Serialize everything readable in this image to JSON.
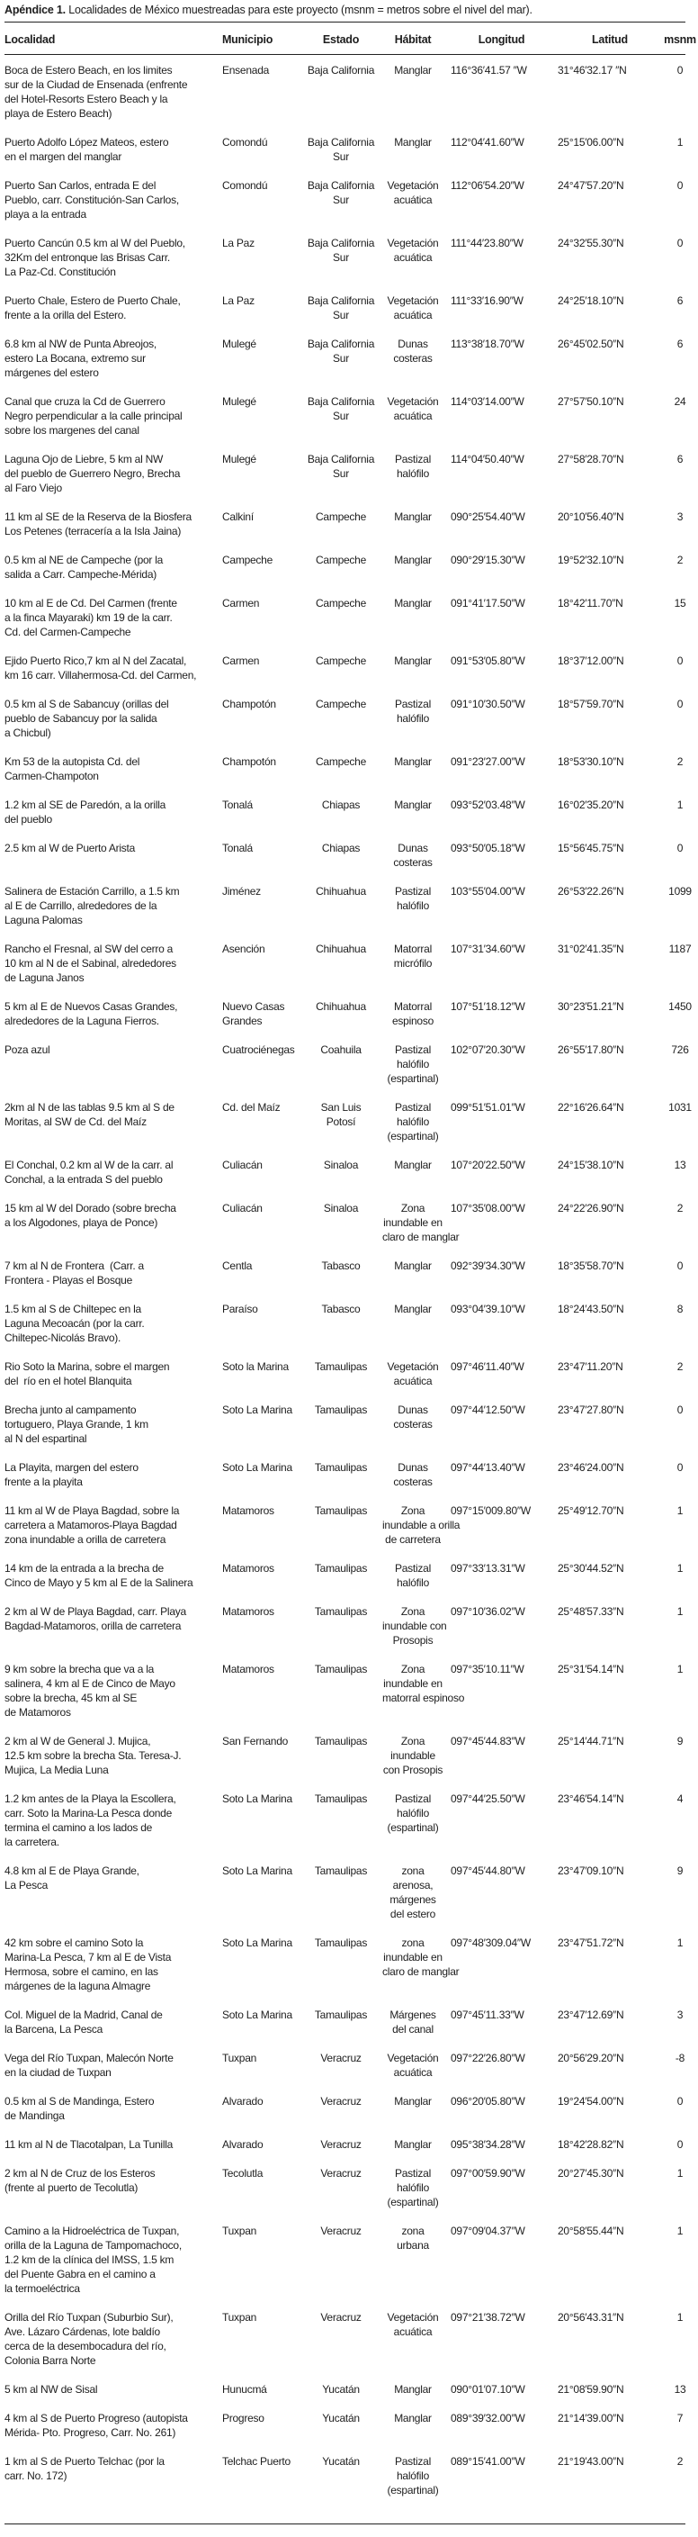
{
  "caption": {
    "label": "Apéndice 1.",
    "text": " Localidades de México muestreadas para este proyecto (msnm = metros sobre el nivel del mar)."
  },
  "table": {
    "headers": [
      "Localidad",
      "Municipio",
      "Estado",
      "Hábitat",
      "Longitud",
      "Latitud",
      "msnm"
    ],
    "rows": [
      [
        "Boca de Estero Beach, en los limites\nsur de la Ciudad de Ensenada (enfrente\ndel Hotel-Resorts Estero Beach y la\nplaya de Estero Beach)",
        "Ensenada",
        "Baja California",
        "Manglar",
        "116°36′41.57 ″W",
        "31°46′32.17 ″N",
        "0"
      ],
      [
        "Puerto Adolfo López Mateos, estero\nen el margen del manglar",
        "Comondú",
        "Baja California\nSur",
        "Manglar",
        "112°04′41.60″W",
        "25°15′06.00″N",
        "1"
      ],
      [
        "Puerto San Carlos, entrada E del\nPueblo, carr. Constitución-San Carlos,\nplaya a la entrada",
        "Comondú",
        "Baja California\nSur",
        "Vegetación\nacuática",
        "112°06′54.20″W",
        "24°47′57.20″N",
        "0"
      ],
      [
        "Puerto Cancún 0.5 km al W del Pueblo,\n32Km del entronque las Brisas Carr.\nLa Paz-Cd. Constitución",
        "La Paz",
        "Baja California\nSur",
        "Vegetación\nacuática",
        "111°44′23.80″W",
        "24°32′55.30″N",
        "0"
      ],
      [
        "Puerto Chale, Estero de Puerto Chale,\nfrente a la orilla del Estero.",
        "La Paz",
        "Baja California\nSur",
        "Vegetación\nacuática",
        "111°33′16.90″W",
        "24°25′18.10″N",
        "6"
      ],
      [
        "6.8 km al NW de Punta Abreojos,\nestero La Bocana, extremo sur\nmárgenes del estero",
        "Mulegé",
        "Baja California\nSur",
        "Dunas\ncosteras",
        "113°38′18.70″W",
        "26°45′02.50″N",
        "6"
      ],
      [
        "Canal que cruza la Cd de Guerrero\nNegro perpendicular a la calle principal\nsobre los margenes del canal",
        "Mulegé",
        "Baja California\nSur",
        "Vegetación\nacuática",
        "114°03′14.00″W",
        "27°57′50.10″N",
        "24"
      ],
      [
        "Laguna Ojo de Liebre, 5 km al NW\ndel pueblo de Guerrero Negro, Brecha\nal Faro Viejo",
        "Mulegé",
        "Baja California\nSur",
        "Pastizal\nhalófilo",
        "114°04′50.40″W",
        "27°58′28.70″N",
        "6"
      ],
      [
        "11 km al SE de la Reserva de la Biosfera\nLos Petenes (terracería a la Isla Jaina)",
        "Calkiní",
        "Campeche",
        "Manglar",
        "090°25′54.40″W",
        "20°10′56.40″N",
        "3"
      ],
      [
        "0.5 km al NE de Campeche (por la\nsalida a Carr. Campeche-Mérida)",
        "Campeche",
        "Campeche",
        "Manglar",
        "090°29′15.30″W",
        "19°52′32.10″N",
        "2"
      ],
      [
        "10 km al E de Cd. Del Carmen (frente\na la finca Mayaraki) km 19 de la carr.\nCd. del Carmen-Campeche",
        "Carmen",
        "Campeche",
        "Manglar",
        "091°41′17.50″W",
        "18°42′11.70″N",
        "15"
      ],
      [
        "Ejido Puerto Rico,7 km al N del Zacatal,\nkm 16 carr. Villahermosa-Cd. del Carmen,",
        "Carmen",
        "Campeche",
        "Manglar",
        "091°53′05.80″W",
        "18°37′12.00″N",
        "0"
      ],
      [
        "0.5 km al S de Sabancuy (orillas del\npueblo de Sabancuy por la salida\na Chicbul)",
        "Champotón",
        "Campeche",
        "Pastizal\nhalófilo",
        "091°10′30.50″W",
        "18°57′59.70″N",
        "0"
      ],
      [
        "Km 53 de la autopista Cd. del\nCarmen-Champoton",
        "Champotón",
        "Campeche",
        "Manglar",
        "091°23′27.00″W",
        "18°53′30.10″N",
        "2"
      ],
      [
        "1.2 km al SE de Paredón, a la orilla\ndel pueblo",
        "Tonalá",
        "Chiapas",
        "Manglar",
        "093°52′03.48″W",
        "16°02′35.20″N",
        "1"
      ],
      [
        "2.5 km al W de Puerto Arista",
        "Tonalá",
        "Chiapas",
        "Dunas\ncosteras",
        "093°50′05.18″W",
        "15°56′45.75″N",
        "0"
      ],
      [
        "Salinera de Estación Carrillo, a 1.5 km\nal E de Carrillo, alrededores de la\nLaguna Palomas",
        "Jiménez",
        "Chihuahua",
        "Pastizal\nhalófilo",
        "103°55′04.00″W",
        "26°53′22.26″N",
        "1099"
      ],
      [
        "Rancho el Fresnal, al SW del cerro a\n10 km al N de el Sabinal, alrededores\nde Laguna Janos",
        "Asención",
        "Chihuahua",
        "Matorral\nmicrófilo",
        "107°31′34.60″W",
        "31°02′41.35″N",
        "1187"
      ],
      [
        "5 km al E de Nuevos Casas Grandes,\nalrededores de la Laguna Fierros.",
        "Nuevo Casas\nGrandes",
        "Chihuahua",
        "Matorral\nespinoso",
        "107°51′18.12″W",
        "30°23′51.21″N",
        "1450"
      ],
      [
        "Poza azul",
        "Cuatrociénegas",
        "Coahuila",
        "Pastizal\nhalófilo\n(espartinal)",
        "102°07′20.30″W",
        "26°55′17.80″N",
        "726"
      ],
      [
        "2km al N de las tablas 9.5 km al S de\nMoritas, al SW de Cd. del Maíz",
        "Cd. del Maíz",
        "San Luis\nPotosí",
        "Pastizal\nhalófilo\n(espartinal)",
        "099°51′51.01″W",
        "22°16′26.64″N",
        "1031"
      ],
      [
        "El Conchal, 0.2 km al W de la carr. al\nConchal, a la entrada S del pueblo",
        "Culiacán",
        "Sinaloa",
        "Manglar",
        "107°20′22.50″W",
        "24°15′38.10″N",
        "13"
      ],
      [
        "15 km al W del Dorado (sobre brecha\na los Algodones, playa de Ponce)",
        "Culiacán",
        "Sinaloa",
        "Zona\ninundable en\nclaro de manglar",
        "107°35′08.00″W",
        "24°22′26.90″N",
        "2"
      ],
      [
        "7 km al N de Frontera  (Carr. a\nFrontera - Playas el Bosque",
        "Centla",
        "Tabasco",
        "Manglar",
        "092°39′34.30″W",
        "18°35′58.70″N",
        "0"
      ],
      [
        "1.5 km al S de Chiltepec en la\nLaguna Mecoacán (por la carr.\nChiltepec-Nicolás Bravo).",
        "Paraíso",
        "Tabasco",
        "Manglar",
        "093°04′39.10″W",
        "18°24′43.50″N",
        "8"
      ],
      [
        "Rio Soto la Marina, sobre el margen\ndel  río en el hotel Blanquita",
        "Soto la Marina",
        "Tamaulipas",
        "Vegetación\nacuática",
        "097°46′11.40″W",
        "23°47′11.20″N",
        "2"
      ],
      [
        "Brecha junto al campamento\ntortuguero, Playa Grande, 1 km\nal N del espartinal",
        "Soto La Marina",
        "Tamaulipas",
        "Dunas\ncosteras",
        "097°44′12.50″W",
        "23°47′27.80″N",
        "0"
      ],
      [
        "La Playita, margen del estero\nfrente a la playita",
        "Soto La Marina",
        "Tamaulipas",
        "Dunas\ncosteras",
        "097°44′13.40″W",
        "23°46′24.00″N",
        "0"
      ],
      [
        "11 km al W de Playa Bagdad, sobre la\ncarretera a Matamoros-Playa Bagdad\nzona inundable a orilla de carretera",
        "Matamoros",
        "Tamaulipas",
        "Zona\ninundable a orilla\nde carretera",
        "097°15′009.80″W",
        "25°49′12.70″N",
        "1"
      ],
      [
        "14 km de la entrada a la brecha de\nCinco de Mayo y 5 km al E de la Salinera",
        "Matamoros",
        "Tamaulipas",
        "Pastizal\nhalófilo",
        "097°33′13.31″W",
        "25°30′44.52″N",
        "1"
      ],
      [
        "2 km al W de Playa Bagdad, carr. Playa\nBagdad-Matamoros, orilla de carretera",
        "Matamoros",
        "Tamaulipas",
        "Zona\ninundable con\nProsopis",
        "097°10′36.02″W",
        "25°48′57.33″N",
        "1"
      ],
      [
        "9 km sobre la brecha que va a la\nsalinera, 4 km al E de Cinco de Mayo\nsobre la brecha, 45 km al SE\nde Matamoros",
        "Matamoros",
        "Tamaulipas",
        "Zona\ninundable en\nmatorral espinoso",
        "097°35′10.11″W",
        "25°31′54.14″N",
        "1"
      ],
      [
        "2 km al W de General J. Mujica,\n12.5 km sobre la brecha Sta. Teresa-J.\nMujica, La Media Luna",
        "San Fernando",
        "Tamaulipas",
        "Zona\ninundable\ncon Prosopis",
        "097°45′44.83″W",
        "25°14′44.71″N",
        "9"
      ],
      [
        "1.2 km antes de la Playa la Escollera,\ncarr. Soto la Marina-La Pesca donde\ntermina el camino a los lados de\nla carretera.",
        "Soto La Marina",
        "Tamaulipas",
        "Pastizal\nhalófilo\n(espartinal)",
        "097°44′25.50″W",
        "23°46′54.14″N",
        "4"
      ],
      [
        "4.8 km al E de Playa Grande,\nLa Pesca",
        "Soto La Marina",
        "Tamaulipas",
        "zona\narenosa,\nmárgenes\ndel estero",
        "097°45′44.80″W",
        "23°47′09.10″N",
        "9"
      ],
      [
        "42 km sobre el camino Soto la\nMarina-La Pesca, 7 km al E de Vista\nHermosa, sobre el camino, en las\nmárgenes de la laguna Almagre",
        "Soto La Marina",
        "Tamaulipas",
        "zona\ninundable en\nclaro de manglar",
        "097°48′309.04″W",
        "23°47′51.72″N",
        "1"
      ],
      [
        "Col. Miguel de la Madrid, Canal de\nla Barcena, La Pesca",
        "Soto La Marina",
        "Tamaulipas",
        "Márgenes\ndel canal",
        "097°45′11.33″W",
        "23°47′12.69″N",
        "3"
      ],
      [
        "Vega del Río Tuxpan, Malecón Norte\nen la ciudad de Tuxpan",
        "Tuxpan",
        "Veracruz",
        "Vegetación\nacuática",
        "097°22′26.80″W",
        "20°56′29.20″N",
        "-8"
      ],
      [
        "0.5 km al S de Mandinga, Estero\nde Mandinga",
        "Alvarado",
        "Veracruz",
        "Manglar",
        "096°20′05.80″W",
        "19°24′54.00″N",
        "0"
      ],
      [
        "11 km al N de Tlacotalpan, La Tunilla",
        "Alvarado",
        "Veracruz",
        "Manglar",
        "095°38′34.28″W",
        "18°42′28.82″N",
        "0"
      ],
      [
        "2 km al N de Cruz de los Esteros\n(frente al puerto de Tecolutla)",
        "Tecolutla",
        "Veracruz",
        "Pastizal\nhalófilo\n(espartinal)",
        "097°00′59.90″W",
        "20°27′45.30″N",
        "1"
      ],
      [
        "Camino a la Hidroeléctrica de Tuxpan,\norilla de la Laguna de Tampomachoco,\n1.2 km de la clínica del IMSS, 1.5 km\ndel Puente Gabra en el camino a\nla termoeléctrica",
        "Tuxpan",
        "Veracruz",
        "zona\nurbana",
        "097°09′04.37″W",
        "20°58′55.44″N",
        "1"
      ],
      [
        "Orilla del Río Tuxpan (Suburbio Sur),\nAve. Lázaro Cárdenas, lote baldío\ncerca de la desembocadura del río,\nColonia Barra Norte",
        "Tuxpan",
        "Veracruz",
        "Vegetación\nacuática",
        "097°21′38.72″W",
        "20°56′43.31″N",
        "1"
      ],
      [
        "5 km al NW de Sisal",
        "Hunucmá",
        "Yucatán",
        "Manglar",
        "090°01′07.10″W",
        "21°08′59.90″N",
        "13"
      ],
      [
        "4 km al S de Puerto Progreso (autopista\nMérida- Pto. Progreso, Carr. No. 261)",
        "Progreso",
        "Yucatán",
        "Manglar",
        "089°39′32.00″W",
        "21°14′39.00″N",
        "7"
      ],
      [
        "1 km al S de Puerto Telchac (por la\ncarr. No. 172)",
        "Telchac Puerto",
        "Yucatán",
        "Pastizal\nhalófilo\n(espartinal)",
        "089°15′41.00″W",
        "21°19′43.00″N",
        "2"
      ]
    ]
  }
}
